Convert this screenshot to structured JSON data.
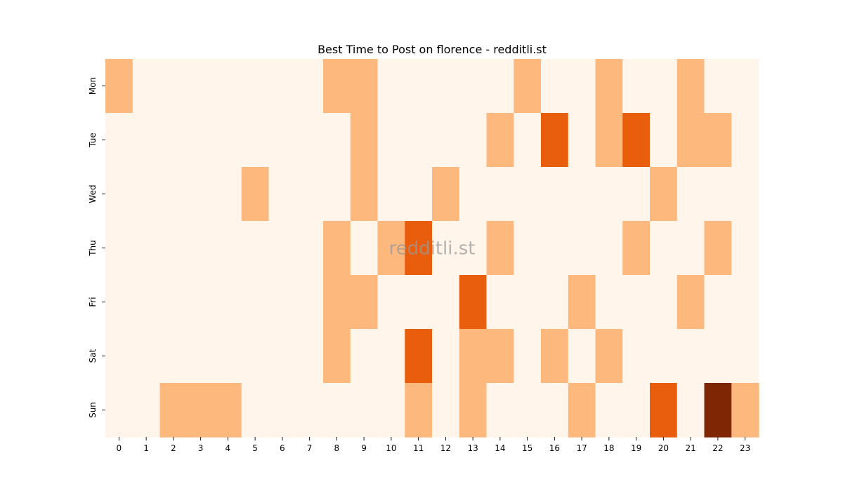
{
  "chart_data": {
    "type": "heatmap",
    "title": "Best Time to Post on florence - redditli.st",
    "watermark": "redditli.st",
    "x_categories": [
      "0",
      "1",
      "2",
      "3",
      "4",
      "5",
      "6",
      "7",
      "8",
      "9",
      "10",
      "11",
      "12",
      "13",
      "14",
      "15",
      "16",
      "17",
      "18",
      "19",
      "20",
      "21",
      "22",
      "23"
    ],
    "y_categories": [
      "Mon",
      "Tue",
      "Wed",
      "Thu",
      "Fri",
      "Sat",
      "Sun"
    ],
    "values": [
      [
        1,
        0,
        0,
        0,
        0,
        0,
        0,
        0,
        1,
        1,
        0,
        0,
        0,
        0,
        0,
        1,
        0,
        0,
        1,
        0,
        0,
        1,
        0,
        0
      ],
      [
        0,
        0,
        0,
        0,
        0,
        0,
        0,
        0,
        0,
        1,
        0,
        0,
        0,
        0,
        1,
        0,
        2,
        0,
        1,
        2,
        0,
        1,
        1,
        0
      ],
      [
        0,
        0,
        0,
        0,
        0,
        1,
        0,
        0,
        0,
        1,
        0,
        0,
        1,
        0,
        0,
        0,
        0,
        0,
        0,
        0,
        1,
        0,
        0,
        0
      ],
      [
        0,
        0,
        0,
        0,
        0,
        0,
        0,
        0,
        1,
        0,
        1,
        2,
        0,
        0,
        1,
        0,
        0,
        0,
        0,
        1,
        0,
        0,
        1,
        0
      ],
      [
        0,
        0,
        0,
        0,
        0,
        0,
        0,
        0,
        1,
        1,
        0,
        0,
        0,
        2,
        0,
        0,
        0,
        1,
        0,
        0,
        0,
        1,
        0,
        0
      ],
      [
        0,
        0,
        0,
        0,
        0,
        0,
        0,
        0,
        1,
        0,
        0,
        2,
        0,
        1,
        1,
        0,
        1,
        0,
        1,
        0,
        0,
        0,
        0,
        0
      ],
      [
        0,
        0,
        1,
        1,
        1,
        0,
        0,
        0,
        0,
        0,
        0,
        1,
        0,
        1,
        0,
        0,
        0,
        1,
        0,
        0,
        2,
        0,
        3,
        1
      ]
    ],
    "colormap": "Oranges",
    "value_colors": [
      "#fff5eb",
      "#fdb97d",
      "#e95e0d",
      "#7f2704"
    ],
    "grid": false,
    "colorbar": false
  }
}
